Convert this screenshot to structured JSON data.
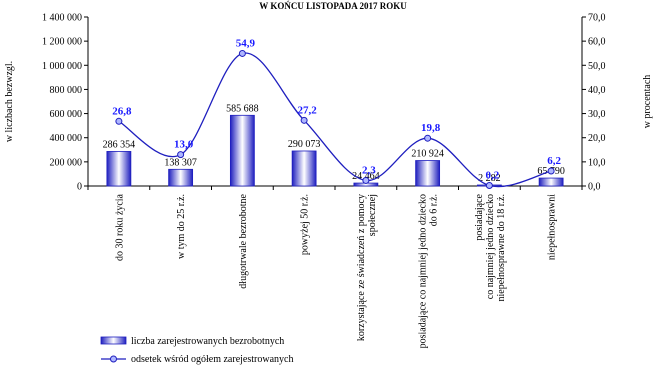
{
  "chart_data": {
    "type": "bar",
    "title": "W KOŃCU  LISTOPADA  2017 ROKU",
    "ylabel_left": "w liczbach bezwzgl.",
    "ylabel_right": "w procentach",
    "categories": [
      [
        "do 30 roku życia"
      ],
      [
        "w tym do 25 r.ż."
      ],
      [
        "długotrwale bezrobotne"
      ],
      [
        "powyżej 50 r.ż."
      ],
      [
        "korzystające ze świadczeń z pomocy",
        "społecznej"
      ],
      [
        "posiadające co najmniej jedno dziecko",
        "do 6 r.ż."
      ],
      [
        "posiadające",
        "co najmniej jedno dziecko",
        "niepełnosprawne do 18 r.ż."
      ],
      [
        "niepełnosprawni"
      ]
    ],
    "series": [
      {
        "name": "liczba zarejestrowanych bezrobotnych",
        "axis": "left",
        "type": "bar",
        "values": [
          286354,
          138307,
          585688,
          290073,
          24464,
          210924,
          2282,
          65790
        ],
        "labels": [
          "286 354",
          "138 307",
          "585 688",
          "290 073",
          "24 464",
          "210 924",
          "2 282",
          "65 790"
        ]
      },
      {
        "name": "odsetek wśród ogółem zarejestrowanych",
        "axis": "right",
        "type": "line",
        "values": [
          26.8,
          13.0,
          54.9,
          27.2,
          2.3,
          19.8,
          0.2,
          6.2
        ],
        "labels": [
          "26,8",
          "13,0",
          "54,9",
          "27,2",
          "2,3",
          "19,8",
          "0,2",
          "6,2"
        ]
      }
    ],
    "left_axis": {
      "ylim": [
        0,
        1400000
      ],
      "ticks": [
        0,
        200000,
        400000,
        600000,
        800000,
        1000000,
        1200000,
        1400000
      ],
      "tick_labels": [
        "0",
        "200 000",
        "400 000",
        "600 000",
        "800 000",
        "1 000 000",
        "1 200 000",
        "1 400 000"
      ]
    },
    "right_axis": {
      "ylim": [
        0,
        70
      ],
      "ticks": [
        0,
        10,
        20,
        30,
        40,
        50,
        60,
        70
      ],
      "tick_labels": [
        "0,0",
        "10,0",
        "20,0",
        "30,0",
        "40,0",
        "50,0",
        "60,0",
        "70,0"
      ]
    },
    "grid": false,
    "legend": "bottom-left",
    "colors": {
      "bar_fill_dark": "#1f1fbf",
      "bar_fill_light": "#ffffff",
      "line": "#1f1fbf",
      "marker_fill": "#aeb6ff",
      "pct_label": "#1a1aff"
    }
  }
}
